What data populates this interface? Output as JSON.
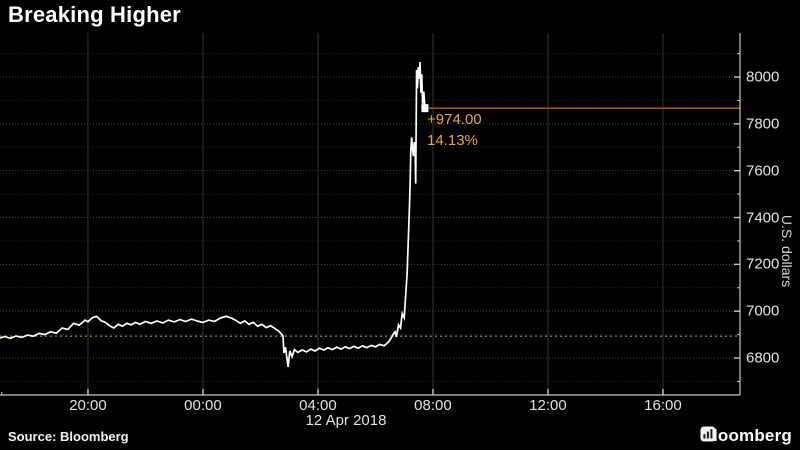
{
  "header": {
    "title": "Breaking Higher"
  },
  "footer": {
    "source": "Source: Bloomberg",
    "logo_text": "Bloomberg"
  },
  "colors": {
    "background": "#000000",
    "price_line": "#ffffff",
    "annotation_orange": "#eba43e",
    "last_price_line_orange": "#b4661f",
    "prev_close_dotted_orange": "#9d7a24",
    "grid_major_horizontal": "#454545",
    "grid_minor_horizontal": "#262626",
    "grid_vertical": "#343434",
    "axis_line": "#c8c8c8",
    "tick_label": "#e3e3e3"
  },
  "chart_data": {
    "type": "line",
    "title": "Breaking Higher",
    "ylabel": "U.S. dollars",
    "legend": "none",
    "grid": "on",
    "x_axis": {
      "unit_note": "hours elapsed since 16:00 on 11 Apr 2018",
      "range_hours": [
        0.94,
        26.68
      ],
      "ticks": [
        {
          "t": 4,
          "label": "20:00"
        },
        {
          "t": 8,
          "label": "00:00"
        },
        {
          "t": 12,
          "label": "04:00"
        },
        {
          "t": 16,
          "label": "08:00"
        },
        {
          "t": 20,
          "label": "12:00"
        },
        {
          "t": 24,
          "label": "16:00"
        }
      ],
      "minor_tick_step_hours": 1,
      "date_label": "12 Apr 2018"
    },
    "y_axis": {
      "range": [
        6642,
        8188
      ],
      "ticks": [
        6800,
        7000,
        7200,
        7400,
        7600,
        7800,
        8000
      ],
      "minor_tick_step": 100,
      "title": "U.S. dollars"
    },
    "reference_lines": {
      "last_price": {
        "value": 7867,
        "style": "solid"
      },
      "previous_close": {
        "value": 6893,
        "style": "dotted"
      }
    },
    "annotation": {
      "change": "+974.00",
      "percent_change": "14.13%"
    },
    "series": [
      {
        "name": "Price",
        "unit": "U.S. dollars",
        "points": [
          [
            0.94,
            6885
          ],
          [
            1.1,
            6892
          ],
          [
            1.3,
            6884
          ],
          [
            1.5,
            6894
          ],
          [
            1.7,
            6888
          ],
          [
            1.9,
            6898
          ],
          [
            2.1,
            6893
          ],
          [
            2.3,
            6905
          ],
          [
            2.5,
            6900
          ],
          [
            2.7,
            6912
          ],
          [
            2.9,
            6906
          ],
          [
            3.1,
            6928
          ],
          [
            3.3,
            6922
          ],
          [
            3.5,
            6948
          ],
          [
            3.7,
            6940
          ],
          [
            3.9,
            6962
          ],
          [
            4.0,
            6955
          ],
          [
            4.15,
            6972
          ],
          [
            4.3,
            6978
          ],
          [
            4.45,
            6960
          ],
          [
            4.6,
            6952
          ],
          [
            4.75,
            6938
          ],
          [
            4.9,
            6928
          ],
          [
            5.05,
            6944
          ],
          [
            5.2,
            6936
          ],
          [
            5.35,
            6948
          ],
          [
            5.5,
            6942
          ],
          [
            5.65,
            6952
          ],
          [
            5.8,
            6944
          ],
          [
            6.0,
            6956
          ],
          [
            6.2,
            6948
          ],
          [
            6.4,
            6958
          ],
          [
            6.6,
            6950
          ],
          [
            6.8,
            6962
          ],
          [
            7.0,
            6954
          ],
          [
            7.2,
            6964
          ],
          [
            7.4,
            6956
          ],
          [
            7.6,
            6966
          ],
          [
            7.8,
            6958
          ],
          [
            8.0,
            6952
          ],
          [
            8.2,
            6962
          ],
          [
            8.4,
            6956
          ],
          [
            8.6,
            6970
          ],
          [
            8.8,
            6978
          ],
          [
            9.0,
            6970
          ],
          [
            9.15,
            6960
          ],
          [
            9.3,
            6948
          ],
          [
            9.45,
            6958
          ],
          [
            9.6,
            6944
          ],
          [
            9.75,
            6952
          ],
          [
            9.9,
            6936
          ],
          [
            10.05,
            6944
          ],
          [
            10.2,
            6930
          ],
          [
            10.35,
            6938
          ],
          [
            10.5,
            6926
          ],
          [
            10.62,
            6916
          ],
          [
            10.72,
            6904
          ],
          [
            10.78,
            6894
          ],
          [
            10.82,
            6822
          ],
          [
            10.87,
            6846
          ],
          [
            10.92,
            6800
          ],
          [
            10.96,
            6762
          ],
          [
            11.02,
            6830
          ],
          [
            11.1,
            6806
          ],
          [
            11.18,
            6836
          ],
          [
            11.3,
            6824
          ],
          [
            11.45,
            6834
          ],
          [
            11.6,
            6826
          ],
          [
            11.75,
            6838
          ],
          [
            11.9,
            6830
          ],
          [
            12.05,
            6842
          ],
          [
            12.2,
            6834
          ],
          [
            12.35,
            6844
          ],
          [
            12.5,
            6836
          ],
          [
            12.65,
            6846
          ],
          [
            12.8,
            6838
          ],
          [
            12.95,
            6848
          ],
          [
            13.1,
            6840
          ],
          [
            13.25,
            6850
          ],
          [
            13.4,
            6842
          ],
          [
            13.55,
            6852
          ],
          [
            13.7,
            6844
          ],
          [
            13.85,
            6854
          ],
          [
            14.0,
            6848
          ],
          [
            14.15,
            6858
          ],
          [
            14.3,
            6852
          ],
          [
            14.45,
            6868
          ],
          [
            14.55,
            6886
          ],
          [
            14.62,
            6902
          ],
          [
            14.68,
            6912
          ],
          [
            14.73,
            6890
          ],
          [
            14.8,
            6942
          ],
          [
            14.87,
            6928
          ],
          [
            14.93,
            6990
          ],
          [
            15.0,
            6972
          ],
          [
            15.05,
            7062
          ],
          [
            15.1,
            7160
          ],
          [
            15.14,
            7292
          ],
          [
            15.18,
            7438
          ],
          [
            15.21,
            7562
          ],
          [
            15.23,
            7688
          ],
          [
            15.26,
            7742
          ],
          [
            15.29,
            7692
          ],
          [
            15.32,
            7662
          ],
          [
            15.35,
            7722
          ],
          [
            15.38,
            7698
          ],
          [
            15.4,
            7545
          ],
          [
            15.43,
            8030
          ],
          [
            15.46,
            7952
          ],
          [
            15.49,
            8042
          ],
          [
            15.52,
            7992
          ],
          [
            15.55,
            8064
          ],
          [
            15.58,
            7932
          ],
          [
            15.61,
            8012
          ],
          [
            15.64,
            7884
          ],
          [
            15.68,
            7938
          ],
          [
            15.72,
            7867
          ]
        ]
      }
    ]
  }
}
